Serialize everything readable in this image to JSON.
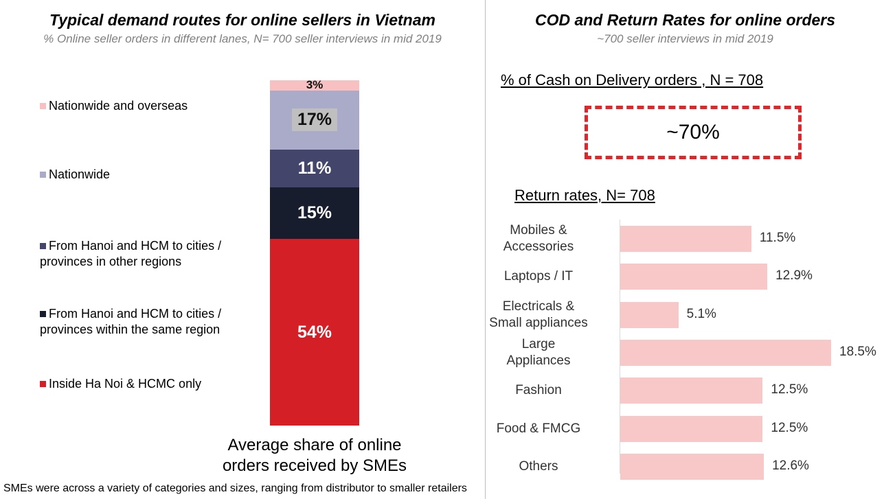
{
  "left": {
    "title": "Typical demand routes for online sellers in Vietnam",
    "subtitle": "% Online seller orders in different lanes, N= 700 seller interviews in mid 2019",
    "caption_line1": "Average share of online",
    "caption_line2": "orders received by SMEs"
  },
  "right": {
    "title": "COD and Return Rates for online orders",
    "subtitle": "~700 seller interviews in mid 2019",
    "cod_header": "% of Cash on Delivery orders , N = 708",
    "cod_value": "~70%",
    "cod_border_color": "#e0262b",
    "returns_header": "Return rates, N= 708"
  },
  "footnote": "SMEs were across a variety of categories and sizes, ranging from distributor to smaller retailers",
  "chart_data": [
    {
      "type": "bar",
      "stacked": true,
      "title": "Typical demand routes for online sellers in Vietnam",
      "xlabel": "Average share of online orders received by SMEs",
      "ylim": [
        0,
        100
      ],
      "legend": "left",
      "series": [
        {
          "name": "Inside Ha Noi & HCMC only",
          "value": 54,
          "label": "54%",
          "color": "#d41f26",
          "text_color": "#ffffff"
        },
        {
          "name": "From Hanoi and HCM to cities / provinces within the same region",
          "value": 15,
          "label": "15%",
          "color": "#181d2e",
          "text_color": "#ffffff"
        },
        {
          "name": "From Hanoi and HCM to cities / provinces in other regions",
          "value": 11,
          "label": "11%",
          "color": "#43466a",
          "text_color": "#ffffff"
        },
        {
          "name": "Nationwide",
          "value": 17,
          "label": "17%",
          "color": "#aaabc8",
          "text_color": "#111111"
        },
        {
          "name": "Nationwide and overseas",
          "value": 3,
          "label": "3%",
          "color": "#f8c0c0",
          "text_color": "#111111"
        }
      ]
    },
    {
      "type": "bar",
      "orientation": "horizontal",
      "title": "Return rates, N= 708",
      "categories": [
        "Mobiles & Accessories",
        "Laptops / IT",
        "Electricals & Small appliances",
        "Large Appliances",
        "Fashion",
        "Food & FMCG",
        "Others"
      ],
      "category_lines": [
        [
          "Mobiles &",
          "Accessories"
        ],
        [
          "Laptops / IT"
        ],
        [
          "Electricals &",
          "Small appliances"
        ],
        [
          "Large",
          "Appliances"
        ],
        [
          "Fashion"
        ],
        [
          "Food & FMCG"
        ],
        [
          "Others"
        ]
      ],
      "values": [
        11.5,
        12.9,
        5.1,
        18.5,
        12.5,
        12.5,
        12.6
      ],
      "labels": [
        "11.5%",
        "12.9%",
        "5.1%",
        "18.5%",
        "12.5%",
        "12.5%",
        "12.6%"
      ],
      "color": "#f8c8c8",
      "xlim": [
        0,
        18.5
      ]
    }
  ]
}
